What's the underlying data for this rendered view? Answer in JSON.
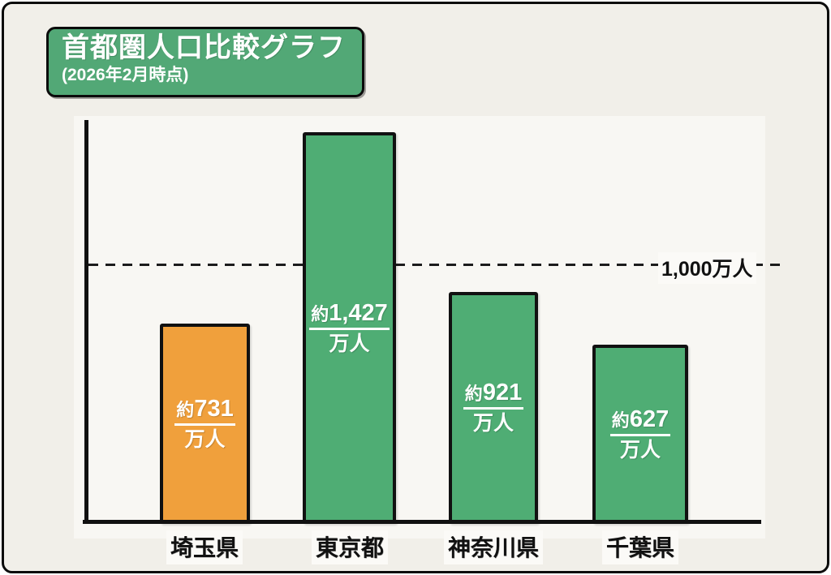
{
  "header": {
    "title": "首都圏人口比較グラフ",
    "subtitle": "(2026年2月時点)"
  },
  "colors": {
    "bar_green": "#4fad74",
    "bar_orange": "#f0a03c",
    "badge_green": "#52a876",
    "background": "#f1efe9",
    "plot_background": "#f8f7f3",
    "axis": "#111111",
    "value_text": "#ffffff",
    "reference_text": "#111111"
  },
  "chart_data": {
    "type": "bar",
    "title": "首都圏人口比較グラフ",
    "subtitle": "(2026年2月時点)",
    "categories": [
      "埼玉県",
      "東京都",
      "神奈川県",
      "千葉県"
    ],
    "values": [
      731,
      1427,
      921,
      627
    ],
    "unit": "万人",
    "xlabel": "",
    "ylabel": "",
    "ylim": [
      0,
      1500
    ],
    "grid": false,
    "legend": false,
    "bars": [
      {
        "category": "埼玉県",
        "value": 731,
        "label_prefix": "約",
        "label_number": "731",
        "label_unit": "万人",
        "color": "#f0a03c"
      },
      {
        "category": "東京都",
        "value": 1427,
        "label_prefix": "約",
        "label_number": "1,427",
        "label_unit": "万人",
        "color": "#4fad74"
      },
      {
        "category": "神奈川県",
        "value": 921,
        "label_prefix": "約",
        "label_number": "921",
        "label_unit": "万人",
        "color": "#4fad74"
      },
      {
        "category": "千葉県",
        "value": 627,
        "label_prefix": "約",
        "label_number": "627",
        "label_unit": "万人",
        "color": "#4fad74"
      }
    ],
    "reference_line": {
      "value": 1000,
      "label": "1,000万人",
      "style": "dashed"
    }
  }
}
